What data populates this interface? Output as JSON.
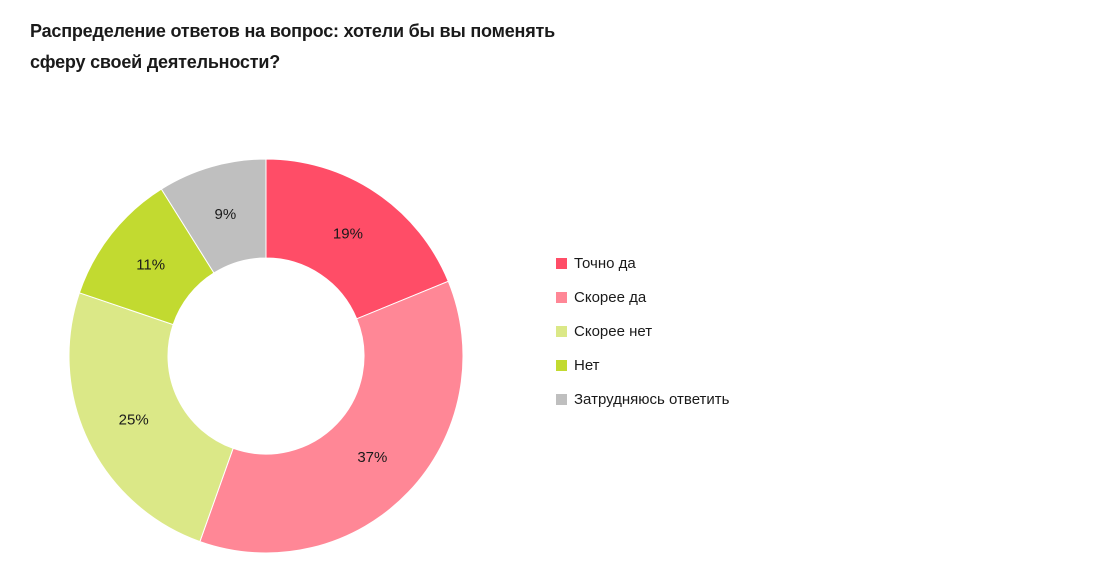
{
  "title_line1": "Распределение ответов на вопрос: хотели бы вы поменять",
  "title_line2": "сферу своей деятельности?",
  "chart_data": {
    "type": "pie",
    "donut": true,
    "legend_position": "right",
    "slices": [
      {
        "label": "Точно да",
        "value": 19,
        "value_label": "19%",
        "color": "#ff4d67"
      },
      {
        "label": "Скорее да",
        "value": 37,
        "value_label": "37%",
        "color": "#ff8796"
      },
      {
        "label": "Скорее нет",
        "value": 25,
        "value_label": "25%",
        "color": "#dbe887"
      },
      {
        "label": "Нет",
        "value": 11,
        "value_label": "11%",
        "color": "#c2da30"
      },
      {
        "label": "Затрудняюсь ответить",
        "value": 9,
        "value_label": "9%",
        "color": "#bfbfbf"
      }
    ]
  }
}
